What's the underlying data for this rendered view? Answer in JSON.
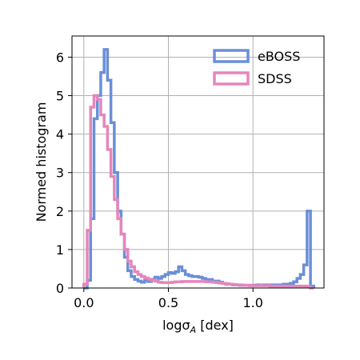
{
  "chart_data": {
    "type": "histogram",
    "xlabel": "logσ_A [dex]",
    "ylabel": "Normed histogram",
    "xlim": [
      -0.07,
      1.42
    ],
    "ylim": [
      0,
      6.55
    ],
    "xticks": [
      0.0,
      0.5,
      1.0
    ],
    "xtick_labels": [
      "0.0",
      "0.5",
      "1.0"
    ],
    "yticks": [
      0,
      1,
      2,
      3,
      4,
      5,
      6
    ],
    "ytick_labels": [
      "0",
      "1",
      "2",
      "3",
      "4",
      "5",
      "6"
    ],
    "grid": true,
    "legend_position": "upper right",
    "bin_edges": [
      0.0,
      0.02,
      0.04,
      0.06,
      0.08,
      0.1,
      0.12,
      0.14,
      0.16,
      0.18,
      0.2,
      0.22,
      0.24,
      0.26,
      0.28,
      0.3,
      0.32,
      0.34,
      0.36,
      0.38,
      0.4,
      0.42,
      0.44,
      0.46,
      0.48,
      0.5,
      0.52,
      0.54,
      0.56,
      0.58,
      0.6,
      0.62,
      0.64,
      0.66,
      0.68,
      0.7,
      0.72,
      0.74,
      0.76,
      0.78,
      0.8,
      0.82,
      0.84,
      0.86,
      0.88,
      0.9,
      0.92,
      0.94,
      0.96,
      0.98,
      1.0,
      1.02,
      1.04,
      1.06,
      1.08,
      1.1,
      1.12,
      1.14,
      1.16,
      1.18,
      1.2,
      1.22,
      1.24,
      1.26,
      1.28,
      1.3,
      1.32,
      1.34,
      1.36
    ],
    "series": [
      {
        "name": "eBOSS",
        "color": "#6a8fd8",
        "values": [
          0.0,
          0.2,
          1.8,
          4.4,
          5.0,
          5.6,
          6.2,
          5.4,
          4.3,
          3.0,
          2.0,
          1.4,
          0.8,
          0.45,
          0.3,
          0.22,
          0.18,
          0.15,
          0.2,
          0.17,
          0.22,
          0.28,
          0.25,
          0.3,
          0.35,
          0.4,
          0.38,
          0.42,
          0.55,
          0.45,
          0.35,
          0.32,
          0.3,
          0.3,
          0.28,
          0.25,
          0.22,
          0.22,
          0.18,
          0.18,
          0.15,
          0.12,
          0.1,
          0.1,
          0.08,
          0.08,
          0.07,
          0.07,
          0.07,
          0.07,
          0.07,
          0.08,
          0.07,
          0.08,
          0.08,
          0.08,
          0.08,
          0.08,
          0.08,
          0.1,
          0.1,
          0.12,
          0.16,
          0.25,
          0.35,
          0.6,
          2.0,
          0.05
        ]
      },
      {
        "name": "SDSS",
        "color": "#e586bb",
        "values": [
          0.1,
          1.5,
          4.7,
          5.0,
          4.9,
          4.5,
          4.2,
          3.6,
          2.9,
          2.3,
          1.8,
          1.4,
          1.0,
          0.7,
          0.55,
          0.42,
          0.35,
          0.3,
          0.26,
          0.23,
          0.2,
          0.18,
          0.15,
          0.14,
          0.14,
          0.14,
          0.15,
          0.16,
          0.16,
          0.17,
          0.17,
          0.17,
          0.17,
          0.17,
          0.17,
          0.17,
          0.16,
          0.16,
          0.15,
          0.14,
          0.13,
          0.12,
          0.11,
          0.1,
          0.09,
          0.08,
          0.08,
          0.07,
          0.07,
          0.06,
          0.06,
          0.06,
          0.06,
          0.06,
          0.06,
          0.05,
          0.05,
          0.05,
          0.05,
          0.05,
          0.05,
          0.05,
          0.05,
          0.05,
          0.05,
          0.05,
          0.03,
          0.0
        ]
      }
    ]
  }
}
